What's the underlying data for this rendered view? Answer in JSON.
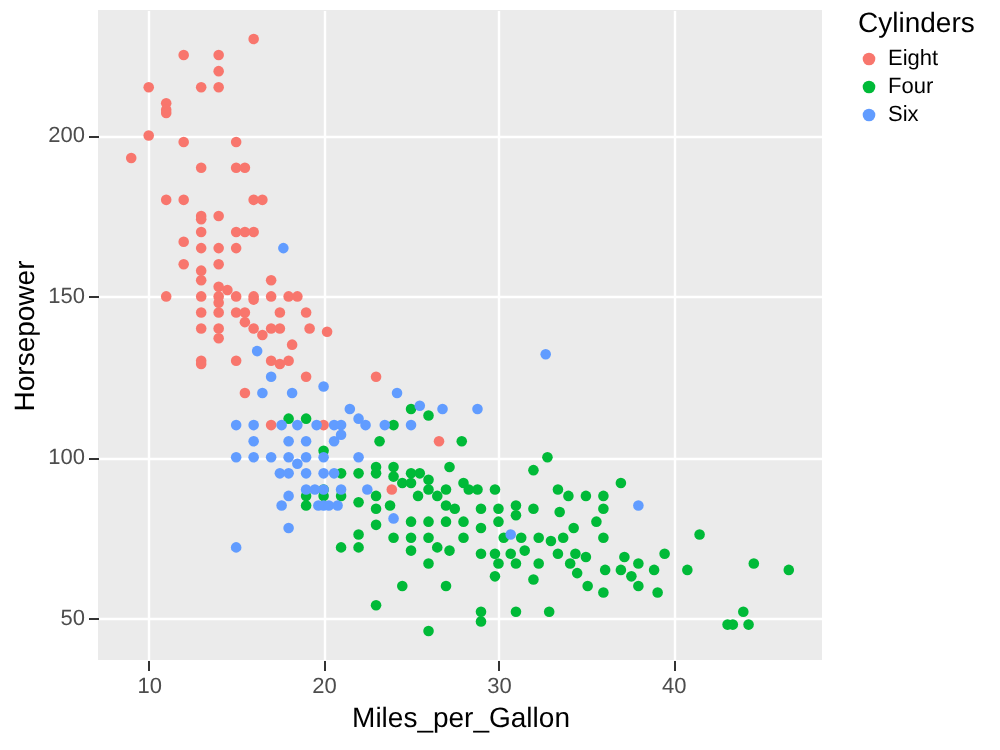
{
  "chart_data": {
    "type": "scatter",
    "xlabel": "Miles_per_Gallon",
    "ylabel": "Horsepower",
    "legend_title": "Cylinders",
    "legend": "right",
    "grid": true,
    "marker": "circle",
    "xlim": [
      7.1,
      48.5
    ],
    "ylim": [
      37,
      239
    ],
    "xticks": [
      10,
      20,
      30,
      40
    ],
    "yticks": [
      50,
      100,
      150,
      200
    ],
    "series": [
      {
        "name": "Eight",
        "color": "#f8766d",
        "x": [
          16,
          12,
          14,
          14,
          14,
          13,
          10,
          11,
          11,
          11,
          10,
          9,
          12,
          15,
          13,
          15,
          15.5,
          11,
          12,
          16,
          16.5,
          13,
          13,
          14,
          13,
          15,
          15.5,
          16,
          12,
          13,
          14,
          15,
          12,
          14,
          13,
          13,
          17,
          14,
          14.5,
          11,
          13,
          14,
          15,
          16,
          17,
          18,
          18.5,
          14,
          16,
          13,
          14,
          15,
          15.5,
          17.5,
          19,
          15.5,
          13,
          14,
          16,
          17,
          17.5,
          19.2,
          20.2,
          16.5,
          14,
          18.2,
          13,
          13,
          15,
          17,
          18,
          17.5,
          19,
          23,
          15.5,
          17,
          20,
          23.9,
          26.6
        ],
        "values": [
          230,
          225,
          225,
          220,
          215,
          215,
          215,
          210,
          208,
          207,
          200,
          193,
          198,
          198,
          190,
          190,
          190,
          180,
          180,
          180,
          180,
          175,
          174,
          175,
          170,
          170,
          170,
          170,
          167,
          165,
          165,
          165,
          160,
          160,
          158,
          155,
          155,
          153,
          152,
          150,
          150,
          150,
          150,
          150,
          150,
          150,
          150,
          148,
          149,
          145,
          145,
          145,
          145,
          145,
          145,
          142,
          140,
          140,
          140,
          140,
          140,
          140,
          139,
          138,
          137,
          135,
          130,
          129,
          130,
          130,
          130,
          129,
          125,
          125,
          120,
          110,
          110,
          90,
          105
        ]
      },
      {
        "name": "Four",
        "color": "#00ba38",
        "x": [
          18,
          19,
          25,
          26,
          24,
          27.9,
          23.2,
          20,
          32.8,
          32,
          23,
          24,
          25,
          25.5,
          27.2,
          19,
          19,
          20,
          20,
          21,
          21,
          22,
          23,
          24,
          24.5,
          25,
          26,
          26,
          27,
          28,
          28.3,
          28.8,
          29.8,
          33.4,
          34,
          35,
          36,
          37,
          22,
          23,
          23,
          23.8,
          25.4,
          26.5,
          27,
          27.5,
          29,
          30,
          31,
          32,
          33.5,
          36,
          23,
          25,
          26,
          27,
          28,
          29,
          30,
          31,
          34.3,
          35.6,
          22,
          24,
          25,
          26,
          26.5,
          28,
          30.3,
          31.3,
          32.3,
          33,
          33.7,
          36,
          41.5,
          21,
          22,
          25,
          27.2,
          29,
          29.8,
          30.7,
          31.5,
          33.4,
          34.4,
          35,
          37.2,
          39.5,
          26,
          30,
          31,
          32.3,
          34.1,
          36.1,
          37,
          38,
          40.8,
          44.6,
          46.6,
          29.8,
          32,
          34.5,
          37.6,
          38.9,
          24.5,
          27,
          35.1,
          36,
          38,
          39.1,
          23,
          29,
          29,
          31,
          32.9,
          44,
          26,
          43.1,
          43.4,
          44.3
        ],
        "values": [
          112,
          112,
          115,
          113,
          110,
          105,
          105,
          102,
          100,
          96,
          97,
          97,
          95,
          95,
          97,
          88,
          85,
          90,
          88,
          88,
          95,
          95,
          95,
          94,
          92,
          92,
          93,
          90,
          90,
          92,
          90,
          90,
          90,
          90,
          88,
          88,
          88,
          92,
          86,
          88,
          84,
          85,
          88,
          88,
          85,
          84,
          84,
          84,
          85,
          84,
          83,
          84,
          79,
          80,
          80,
          80,
          80,
          78,
          80,
          82,
          78,
          80,
          76,
          75,
          75,
          75,
          72,
          75,
          75,
          75,
          75,
          74,
          75,
          75,
          76,
          72,
          72,
          71,
          71,
          70,
          70,
          70,
          71,
          70,
          70,
          69,
          69,
          70,
          67,
          67,
          67,
          67,
          67,
          65,
          65,
          67,
          65,
          67,
          65,
          63,
          62,
          64,
          63,
          65,
          60,
          60,
          60,
          58,
          60,
          58,
          54,
          52,
          49,
          52,
          52,
          52,
          46,
          48,
          48,
          48
        ]
      },
      {
        "name": "Six",
        "color": "#619cff",
        "x": [
          17.7,
          32.7,
          16.2,
          17,
          16.5,
          18.2,
          20,
          24.2,
          21.5,
          25.5,
          26.8,
          28.8,
          15,
          16,
          17.6,
          18.5,
          19.6,
          20.6,
          21,
          22.4,
          23.5,
          25,
          22,
          16,
          18,
          19,
          20.6,
          21,
          15,
          16,
          17,
          18,
          19,
          20,
          22,
          17.5,
          18,
          19,
          20,
          20.6,
          18.5,
          19,
          19.5,
          20,
          21,
          22.5,
          18,
          17.6,
          19.7,
          20,
          20.3,
          20.8,
          38,
          24,
          18,
          30.7,
          15
        ],
        "values": [
          165,
          132,
          133,
          125,
          120,
          120,
          122,
          120,
          115,
          116,
          115,
          115,
          110,
          110,
          110,
          110,
          110,
          110,
          110,
          110,
          110,
          110,
          112,
          105,
          105,
          105,
          105,
          107,
          100,
          100,
          100,
          100,
          100,
          100,
          100,
          95,
          95,
          95,
          95,
          95,
          98,
          90,
          90,
          90,
          90,
          90,
          88,
          85,
          85,
          85,
          85,
          85,
          85,
          81,
          78,
          76,
          72
        ]
      }
    ]
  }
}
